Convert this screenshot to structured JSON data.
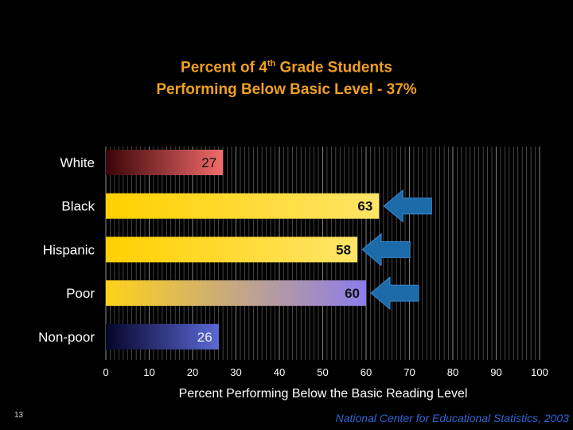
{
  "page": {
    "title_parts": [
      "Percent of 4",
      "th",
      " Grade Students"
    ],
    "title_line2": "Performing Below Basic Level - 37%",
    "footnote": "National Center for Educational Statistics, 2003",
    "page_number": "13"
  },
  "chart_data": {
    "type": "bar",
    "orientation": "horizontal",
    "title": "Percent of 4th Grade Students Performing Below Basic Level - 37%",
    "categories": [
      "White",
      "Black",
      "Hispanic",
      "Poor",
      "Non-poor"
    ],
    "values": [
      27,
      63,
      58,
      60,
      26
    ],
    "value_labels": [
      "27",
      "63",
      "58",
      "60",
      "26"
    ],
    "xlabel": "Percent Performing Below the Basic Reading Level",
    "ylabel": "",
    "xlim": [
      0,
      100
    ],
    "xticks": [
      0,
      10,
      20,
      30,
      40,
      50,
      60,
      70,
      80,
      90,
      100
    ],
    "grid": true,
    "arrows_on": [
      "Black",
      "Hispanic",
      "Poor"
    ],
    "colors": {
      "title": "#f0a020",
      "footnote": "#2f66d6",
      "arrow": "#1c6aa8",
      "grid": "#8a8a8a"
    },
    "bar_fills": [
      {
        "from": "#3a0408",
        "to": "#f26b6b",
        "label_color": "#111111"
      },
      {
        "from": "#ffd000",
        "to": "#ffe468",
        "label_color": "#111111"
      },
      {
        "from": "#ffd000",
        "to": "#ffe468",
        "label_color": "#111111"
      },
      {
        "from": "#ffd31a",
        "to": "#8c7cea",
        "label_color": "#111111"
      },
      {
        "from": "#05052a",
        "to": "#5a6ad6",
        "label_color": "#eeeeee"
      }
    ]
  }
}
